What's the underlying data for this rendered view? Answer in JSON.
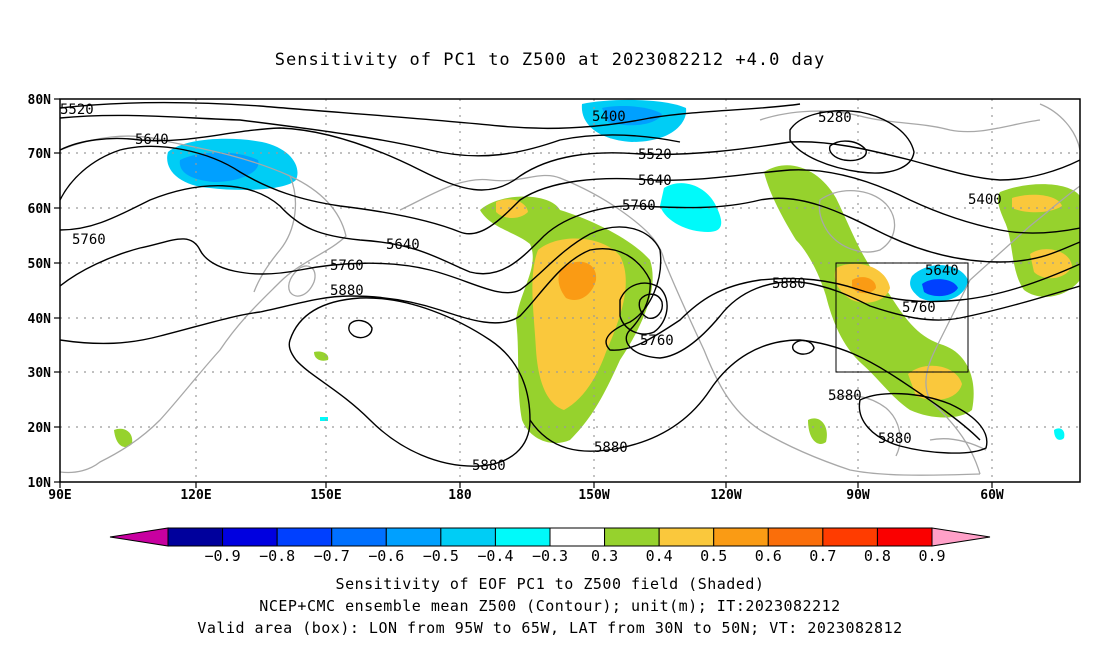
{
  "title": "Sensitivity of PC1 to Z500 at 2023082212 +4.0 day",
  "map": {
    "lon_labels": [
      "90E",
      "120E",
      "150E",
      "180",
      "150W",
      "120W",
      "90W",
      "60W"
    ],
    "lat_labels": [
      "10N",
      "20N",
      "30N",
      "40N",
      "50N",
      "60N",
      "70N",
      "80N"
    ],
    "contour_labels": [
      "5520",
      "5640",
      "5760",
      "5640",
      "5760",
      "5880",
      "5400",
      "5520",
      "5640",
      "5760",
      "5760",
      "5880",
      "5880",
      "5880",
      "5280",
      "5400",
      "5640",
      "5760",
      "5880",
      "5880"
    ],
    "valid_box": {
      "lon_min": -95,
      "lon_max": -65,
      "lat_min": 30,
      "lat_max": 50
    }
  },
  "colorbar": {
    "labels": [
      "−0.9",
      "−0.8",
      "−0.7",
      "−0.6",
      "−0.5",
      "−0.4",
      "−0.3",
      "0.3",
      "0.4",
      "0.5",
      "0.6",
      "0.7",
      "0.8",
      "0.9"
    ],
    "colors": [
      "#00009c",
      "#0000e0",
      "#0040ff",
      "#0070ff",
      "#00a0ff",
      "#00cdf5",
      "#00fafa",
      "#ffffff",
      "#96d22d",
      "#fac83c",
      "#fa9b14",
      "#fa6e0a",
      "#ff3c00",
      "#fa0000"
    ],
    "low_extend_color": "#c800a0",
    "high_extend_color": "#ffa0c8"
  },
  "captions": {
    "line1": "Sensitivity of EOF PC1 to Z500 field (Shaded)",
    "line2": "NCEP+CMC ensemble mean Z500 (Contour); unit(m); IT:2023082212",
    "line3": "Valid area (box): LON from 95W to 65W, LAT from 30N to 50N; VT: 2023082812"
  }
}
